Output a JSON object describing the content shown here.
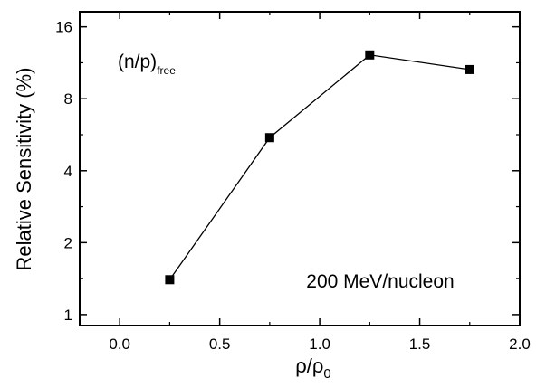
{
  "chart_data": {
    "type": "line",
    "xlabel": "ρ/ρ",
    "xlabel_subscript": "0",
    "ylabel": "Relative Sensitivity (%)",
    "xlim": [
      -0.2,
      2.0
    ],
    "ylim": [
      0.9,
      18.5
    ],
    "yscale": "log2",
    "x_ticks": [
      0.0,
      0.5,
      1.0,
      1.5,
      2.0
    ],
    "x_tick_labels": [
      "0.0",
      "0.5",
      "1.0",
      "1.5",
      "2.0"
    ],
    "y_ticks": [
      1,
      2,
      4,
      8,
      16
    ],
    "y_tick_labels": [
      "1",
      "2",
      "4",
      "8",
      "16"
    ],
    "series": [
      {
        "x": [
          0.25,
          0.75,
          1.25,
          1.75
        ],
        "values": [
          1.4,
          5.5,
          12.2,
          10.6
        ]
      }
    ],
    "annotations": {
      "ratio_main": "(n/p)",
      "ratio_sub": "free",
      "energy": "200 MeV/nucleon"
    },
    "grid": false,
    "marker": "square",
    "color": "#000000"
  }
}
